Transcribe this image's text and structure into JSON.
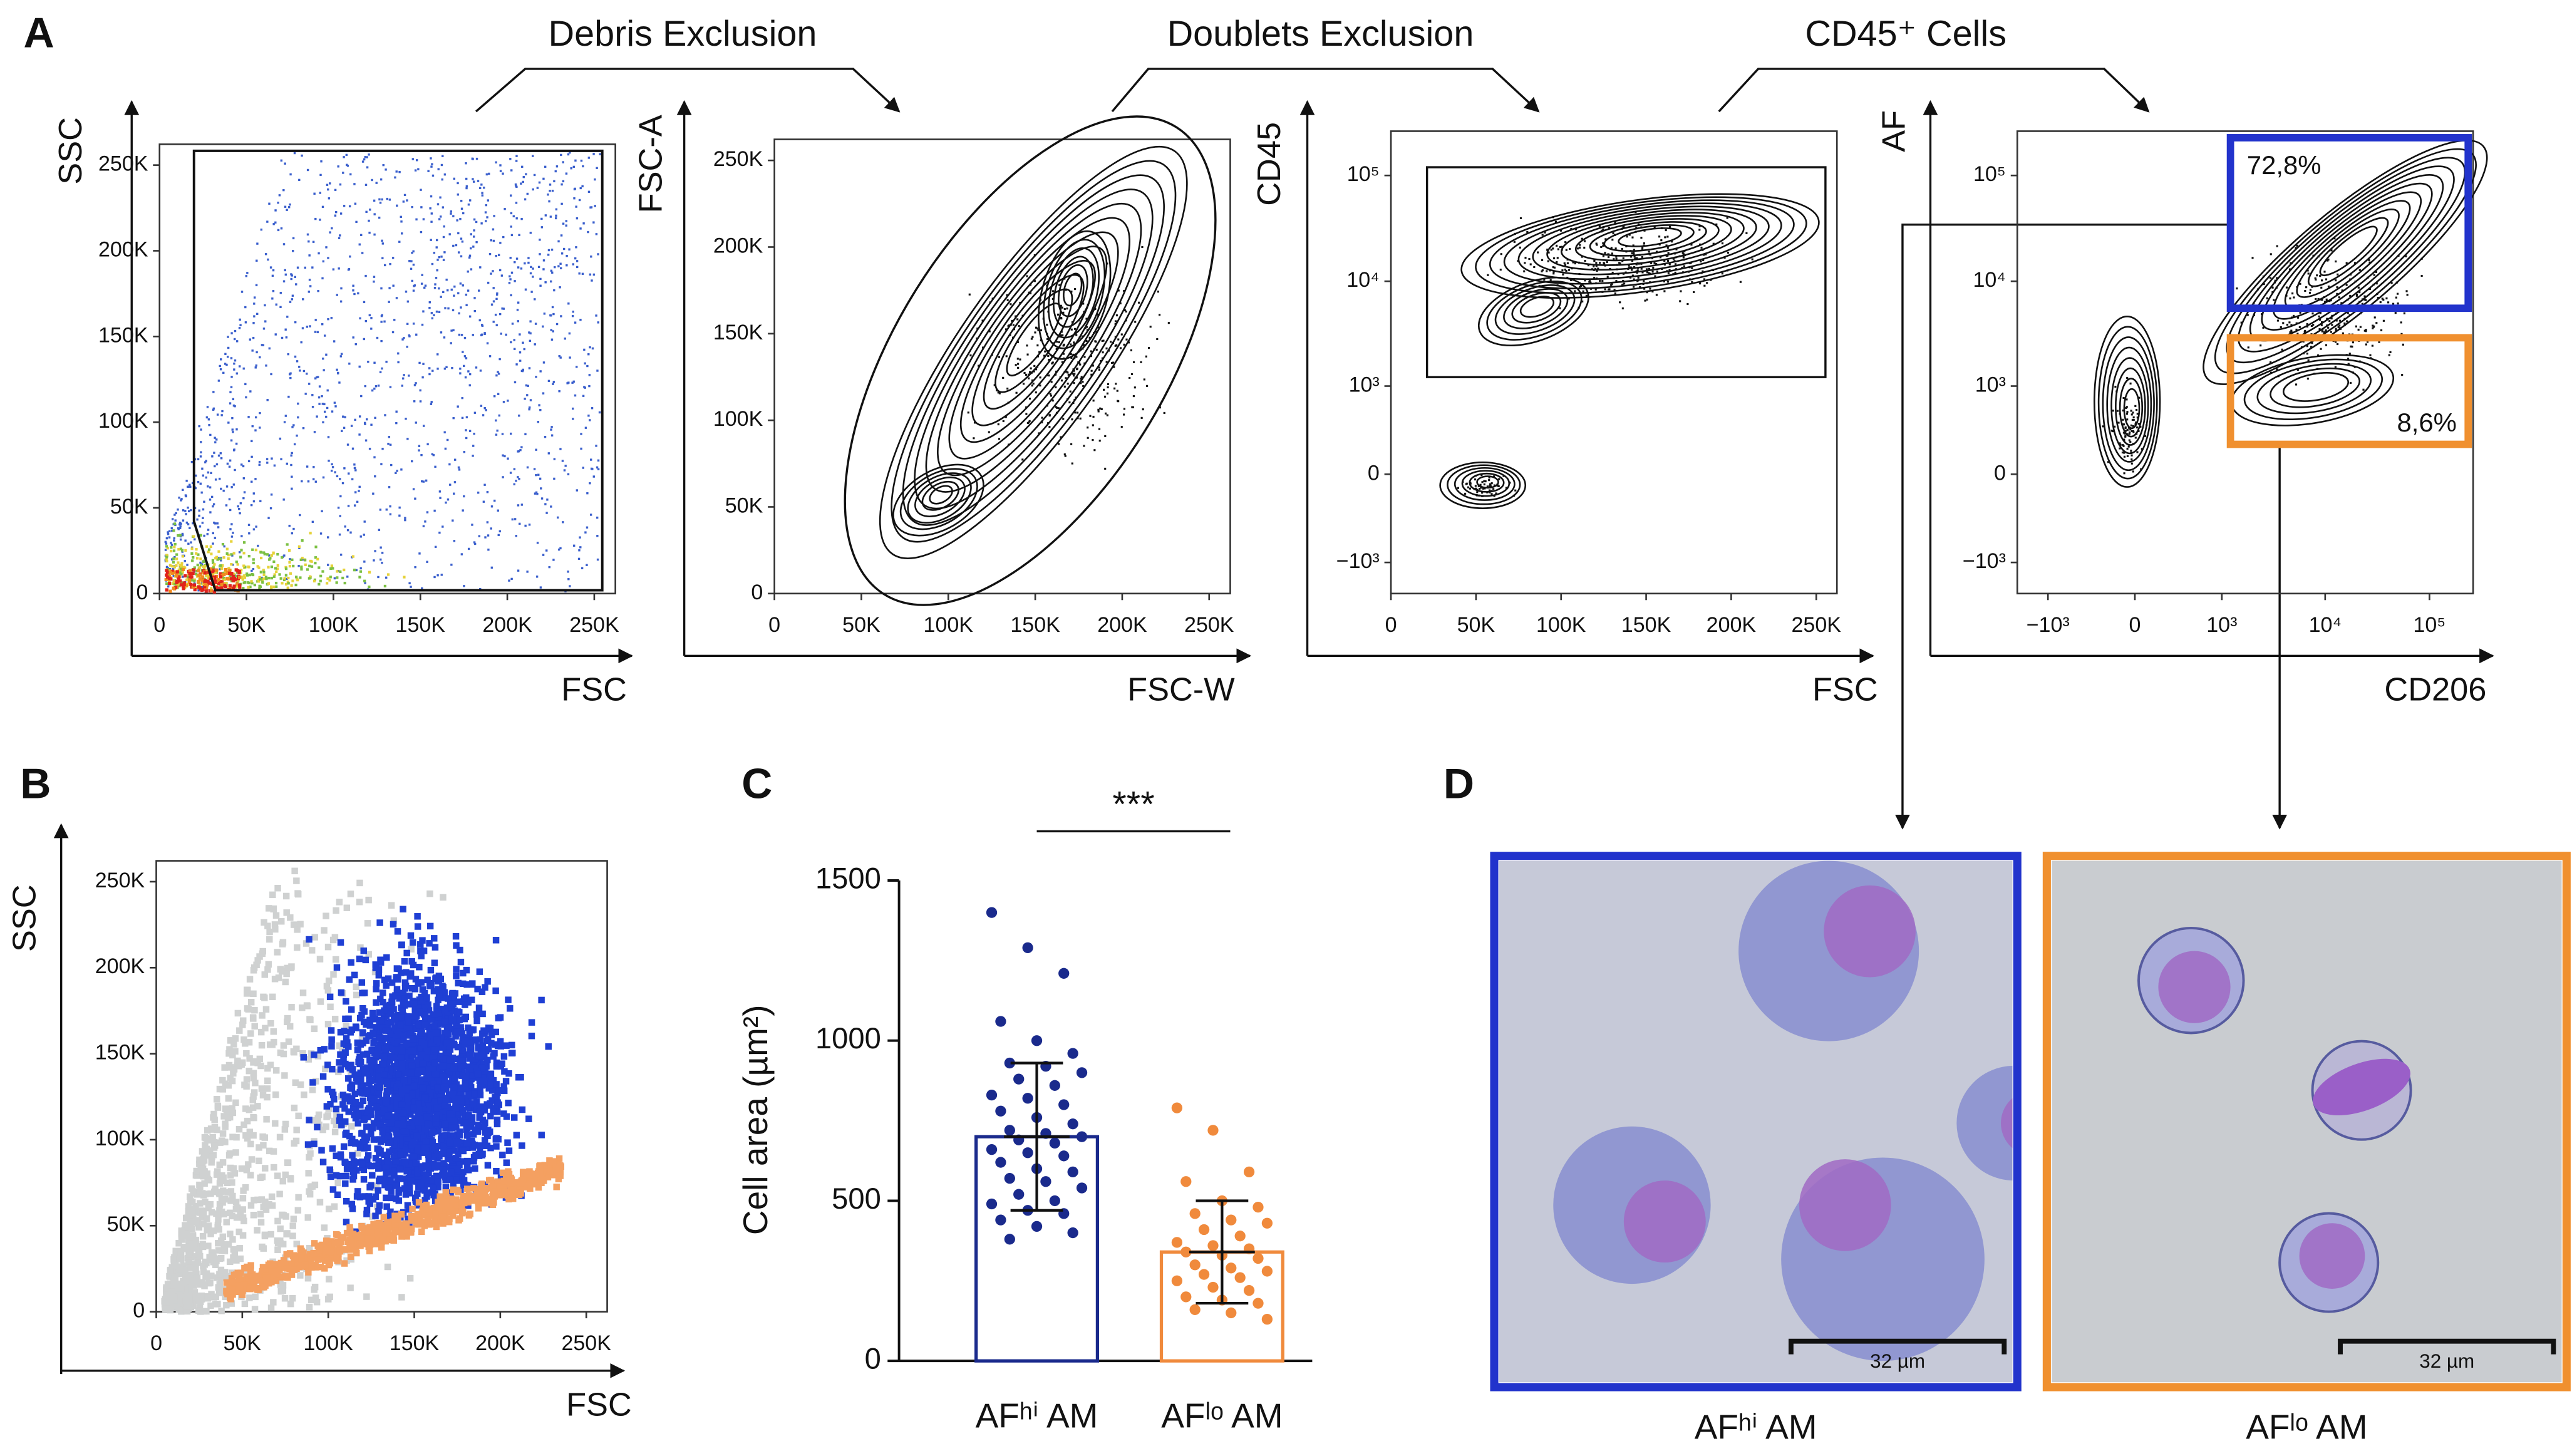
{
  "panel_labels": [
    "A",
    "B",
    "C",
    "D"
  ],
  "A": {
    "steps": [
      "Debris Exclusion",
      "Doublets Exclusion",
      "CD45⁺ Cells"
    ],
    "plots": [
      {
        "x_label": "FSC",
        "y_label": "SSC",
        "xscale": "linear",
        "yscale": "linear",
        "xlim": [
          0,
          262144
        ],
        "ylim": [
          0,
          262144
        ],
        "xticks": [
          0,
          {
            "value": 50000,
            "label": "50K"
          },
          {
            "value": 100000,
            "label": "100K"
          },
          {
            "value": 150000,
            "label": "150K"
          },
          {
            "value": 200000,
            "label": "200K"
          },
          {
            "value": 250000,
            "label": "250K"
          }
        ],
        "yticks": [
          0,
          {
            "value": 50000,
            "label": "50K"
          },
          {
            "value": 100000,
            "label": "100K"
          },
          {
            "value": 150000,
            "label": "150K"
          },
          {
            "value": 200000,
            "label": "200K"
          },
          {
            "value": 250000,
            "label": "250K"
          }
        ]
      },
      {
        "x_label": "FSC-W",
        "y_label": "FSC-A",
        "xscale": "linear",
        "yscale": "linear",
        "xlim": [
          0,
          262144
        ],
        "ylim": [
          0,
          262144
        ],
        "xticks": [
          0,
          {
            "value": 50000,
            "label": "50K"
          },
          {
            "value": 100000,
            "label": "100K"
          },
          {
            "value": 150000,
            "label": "150K"
          },
          {
            "value": 200000,
            "label": "200K"
          },
          {
            "value": 250000,
            "label": "250K"
          }
        ],
        "yticks": [
          0,
          {
            "value": 50000,
            "label": "50K"
          },
          {
            "value": 100000,
            "label": "100K"
          },
          {
            "value": 150000,
            "label": "150K"
          },
          {
            "value": 200000,
            "label": "200K"
          },
          {
            "value": 250000,
            "label": "250K"
          }
        ]
      },
      {
        "x_label": "FSC",
        "y_label": "CD45",
        "xscale": "linear",
        "yscale": "logicle",
        "xlim": [
          0,
          262144
        ],
        "ylim": [
          -2000,
          262144
        ],
        "xticks": [
          0,
          {
            "value": 50000,
            "label": "50K"
          },
          {
            "value": 100000,
            "label": "100K"
          },
          {
            "value": 150000,
            "label": "150K"
          },
          {
            "value": 200000,
            "label": "200K"
          },
          {
            "value": 250000,
            "label": "250K"
          }
        ],
        "yticks": [
          {
            "value": -1000,
            "label": "−10³"
          },
          0,
          {
            "value": 1000,
            "label": "10³"
          },
          {
            "value": 10000,
            "label": "10⁴"
          },
          {
            "value": 100000,
            "label": "10⁵"
          }
        ]
      },
      {
        "x_label": "CD206",
        "y_label": "AF",
        "xscale": "logicle",
        "yscale": "logicle",
        "xlim": [
          -2000,
          262144
        ],
        "ylim": [
          -2000,
          262144
        ],
        "xticks": [
          {
            "value": -1000,
            "label": "−10³"
          },
          0,
          {
            "value": 1000,
            "label": "10³"
          },
          {
            "value": 10000,
            "label": "10⁴"
          },
          {
            "value": 100000,
            "label": "10⁵"
          }
        ],
        "yticks": [
          {
            "value": -1000,
            "label": "−10³"
          },
          0,
          {
            "value": 1000,
            "label": "10³"
          },
          {
            "value": 10000,
            "label": "10⁴"
          },
          {
            "value": 100000,
            "label": "10⁵"
          }
        ],
        "gates": [
          {
            "label": "72,8%",
            "color": "#2233cc"
          },
          {
            "label": "8,6%",
            "color": "#f0902f"
          }
        ]
      }
    ]
  },
  "B": {
    "x_label": "FSC",
    "y_label": "SSC",
    "xscale": "linear",
    "yscale": "linear",
    "xlim": [
      0,
      262144
    ],
    "ylim": [
      0,
      262144
    ],
    "xticks": [
      0,
      {
        "value": 50000,
        "label": "50K"
      },
      {
        "value": 100000,
        "label": "100K"
      },
      {
        "value": 150000,
        "label": "150K"
      },
      {
        "value": 200000,
        "label": "200K"
      },
      {
        "value": 250000,
        "label": "250K"
      }
    ],
    "yticks": [
      0,
      {
        "value": 50000,
        "label": "50K"
      },
      {
        "value": 100000,
        "label": "100K"
      },
      {
        "value": 150000,
        "label": "150K"
      },
      {
        "value": 200000,
        "label": "200K"
      },
      {
        "value": 250000,
        "label": "250K"
      }
    ]
  },
  "chart_data": {
    "type": "bar",
    "y_label": "Cell area (µm²)",
    "annotation": "***",
    "categories": [
      "AFʰⁱ AM",
      "AFˡᵒ AM"
    ],
    "values": [
      700,
      340
    ],
    "errors": [
      230,
      160
    ],
    "colors": [
      "#1a2a8c",
      "#f08a3c"
    ],
    "points": [
      [
        1400,
        1290,
        1210,
        1060,
        1000,
        960,
        930,
        920,
        900,
        880,
        860,
        830,
        820,
        800,
        780,
        760,
        740,
        720,
        710,
        700,
        690,
        680,
        660,
        650,
        640,
        620,
        600,
        590,
        570,
        560,
        540,
        520,
        500,
        490,
        470,
        460,
        440,
        420,
        400,
        380
      ],
      [
        790,
        720,
        590,
        560,
        500,
        480,
        460,
        440,
        430,
        410,
        390,
        370,
        360,
        350,
        340,
        330,
        320,
        300,
        290,
        280,
        270,
        260,
        250,
        230,
        220,
        200,
        190,
        180,
        160,
        150,
        130
      ]
    ],
    "ylim": [
      0,
      1500
    ],
    "yticks": [
      0,
      500,
      1000,
      1500
    ]
  },
  "D": {
    "images": [
      {
        "caption": "AFʰⁱ AM",
        "scale_bar": "32 µm",
        "color": "#2233cc"
      },
      {
        "caption": "AFˡᵒ AM",
        "scale_bar": "32 µm",
        "color": "#f0902f"
      }
    ]
  }
}
